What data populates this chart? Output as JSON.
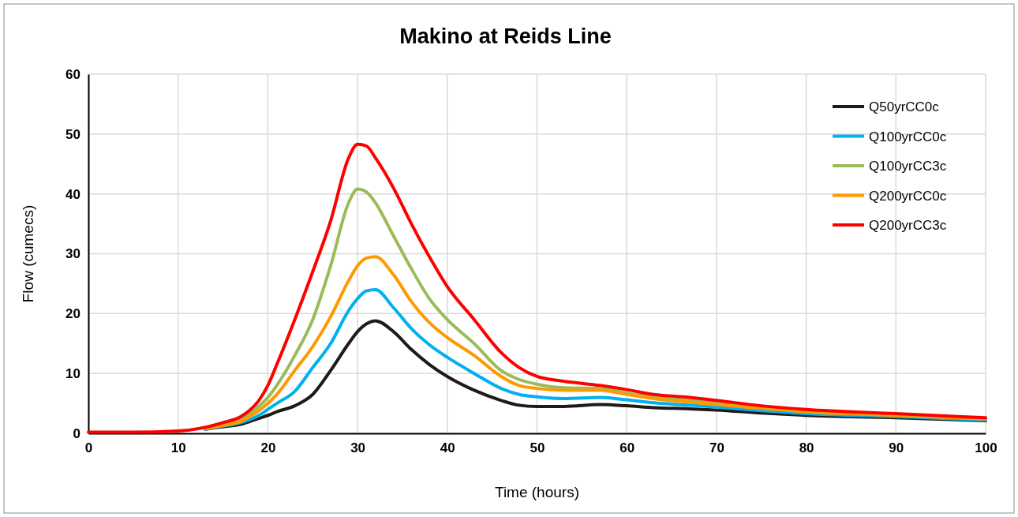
{
  "chart_data": {
    "type": "line",
    "title": "Makino at Reids Line",
    "xlabel": "Time (hours)",
    "ylabel": "Flow (cumecs)",
    "x": [
      0,
      5,
      10,
      13,
      15,
      17,
      19,
      20,
      21,
      23,
      25,
      27,
      29,
      30,
      31,
      32,
      34,
      36,
      38,
      40,
      43,
      46,
      48,
      50,
      53,
      57,
      60,
      63,
      67,
      70,
      75,
      80,
      90,
      100
    ],
    "xlim": [
      0,
      100
    ],
    "xticks": [
      0,
      10,
      20,
      30,
      40,
      50,
      60,
      70,
      80,
      90,
      100
    ],
    "ylim": [
      0,
      60
    ],
    "yticks": [
      0,
      10,
      20,
      30,
      40,
      50,
      60
    ],
    "grid": true,
    "legend": "top right",
    "marker": "none",
    "line_style": "solid",
    "series": [
      {
        "name": "Q50yrCC0c",
        "color": "#1f1a17",
        "values": [
          null,
          null,
          null,
          0.7,
          1.1,
          1.5,
          2.5,
          3,
          3.6,
          4.6,
          6.5,
          10.5,
          15,
          17,
          18.3,
          18.8,
          17,
          14,
          11.5,
          9.5,
          7.2,
          5.5,
          4.7,
          4.5,
          4.5,
          4.8,
          4.6,
          4.3,
          4.1,
          3.9,
          3.4,
          3,
          2.6,
          2.1
        ]
      },
      {
        "name": "Q100yrCC0c",
        "color": "#00b0f0",
        "values": [
          null,
          null,
          null,
          0.7,
          1.2,
          1.8,
          3,
          4,
          5,
          7,
          11,
          15,
          20.5,
          22.5,
          23.8,
          24,
          21,
          17.5,
          14.8,
          12.7,
          10,
          7.5,
          6.5,
          6.1,
          5.8,
          6,
          5.6,
          5.1,
          4.7,
          4.4,
          3.8,
          3.3,
          2.8,
          2.2
        ]
      },
      {
        "name": "Q100yrCC3c",
        "color": "#9bbb59",
        "values": [
          null,
          null,
          null,
          0.8,
          1.5,
          2.4,
          4.5,
          6,
          8,
          13,
          19,
          28,
          38.5,
          40.8,
          40.3,
          38.5,
          33,
          27.5,
          22.5,
          19,
          15,
          10.5,
          9,
          8.2,
          7.6,
          7.5,
          6.7,
          6,
          5.5,
          5.1,
          4.4,
          3.7,
          3.1,
          2.5
        ]
      },
      {
        "name": "Q200yrCC0c",
        "color": "#ff9900",
        "values": [
          null,
          null,
          null,
          0.8,
          1.3,
          2,
          3.8,
          5,
          6.5,
          10.5,
          14.5,
          19.5,
          25.5,
          28,
          29.3,
          29.5,
          26.5,
          22,
          18.5,
          16,
          13,
          9.5,
          8,
          7.5,
          7.2,
          7.2,
          6.5,
          5.8,
          5.2,
          4.8,
          4.2,
          3.6,
          3,
          2.4
        ]
      },
      {
        "name": "Q200yrCC3c",
        "color": "#ff0000",
        "values": [
          0.2,
          0.2,
          0.4,
          1,
          1.8,
          2.8,
          5.5,
          8,
          11.5,
          19,
          27,
          35.5,
          46,
          48.3,
          48,
          46,
          41,
          35,
          29.5,
          24.5,
          19,
          13.5,
          11,
          9.5,
          8.7,
          8,
          7.3,
          6.5,
          6,
          5.5,
          4.6,
          4,
          3.3,
          2.6
        ]
      }
    ]
  }
}
